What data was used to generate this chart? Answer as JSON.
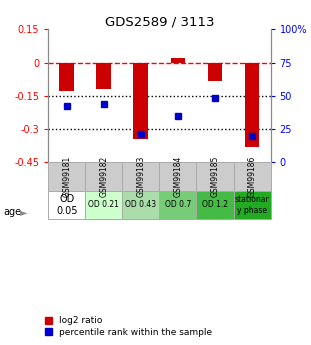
{
  "title": "GDS2589 / 3113",
  "samples": [
    "GSM99181",
    "GSM99182",
    "GSM99183",
    "GSM99184",
    "GSM99185",
    "GSM99186"
  ],
  "log2_ratio": [
    -0.13,
    -0.12,
    -0.345,
    0.02,
    -0.085,
    -0.38
  ],
  "percentile_rank": [
    42,
    44,
    21,
    35,
    48,
    20
  ],
  "ylim_left": [
    -0.45,
    0.15
  ],
  "ylim_right": [
    0,
    100
  ],
  "yticks_left": [
    0.15,
    0.0,
    -0.15,
    -0.3,
    -0.45
  ],
  "ytick_labels_left": [
    "0.15",
    "0",
    "-0.15",
    "-0.3",
    "-0.45"
  ],
  "yticks_right": [
    100,
    75,
    50,
    25,
    0
  ],
  "ytick_labels_right": [
    "100%",
    "75",
    "50",
    "25",
    "0"
  ],
  "hline_0_style": "--",
  "hline_0_color": "red",
  "hline_grid_style": ":",
  "hline_grid_color": "black",
  "bar_color": "#cc0000",
  "dot_color": "#0000cc",
  "age_labels": [
    "OD\n0.05",
    "OD 0.21",
    "OD 0.43",
    "OD 0.7",
    "OD 1.2",
    "stationar\ny phase"
  ],
  "age_bg_colors": [
    "#ffffff",
    "#ccffcc",
    "#aaddaa",
    "#77cc77",
    "#44bb44",
    "#22aa22"
  ],
  "sample_bg_color": "#cccccc",
  "sample_edge_color": "#aaaaaa",
  "legend_red_label": "log2 ratio",
  "legend_blue_label": "percentile rank within the sample"
}
